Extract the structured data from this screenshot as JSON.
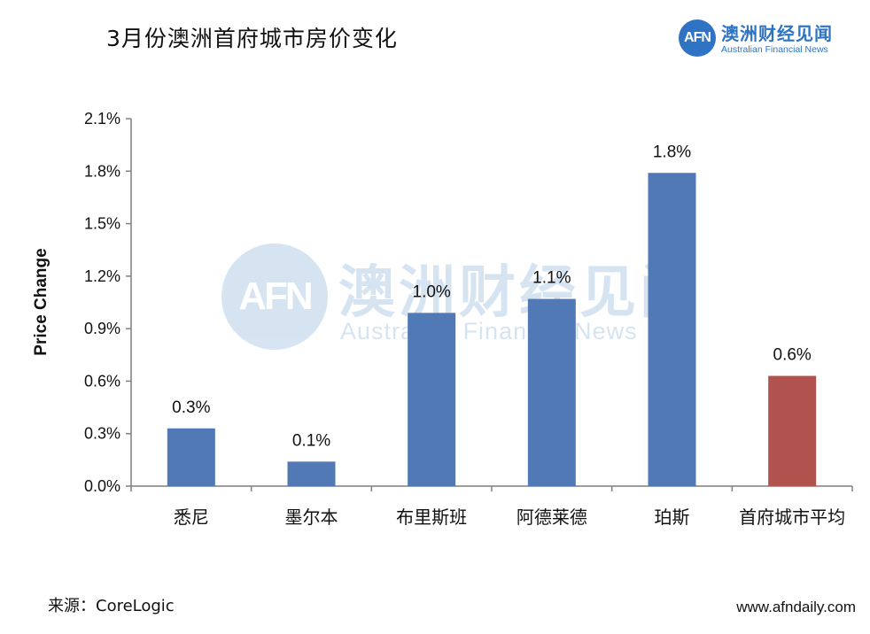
{
  "title": "3月份澳洲首府城市房价变化",
  "logo": {
    "mark": "AFN",
    "name_cn": "澳洲财经见闻",
    "name_en": "Australian Financial News"
  },
  "watermark": {
    "mark": "AFN",
    "name_cn": "澳洲财经见闻",
    "name_en": "Australian Financial News"
  },
  "source": "来源：CoreLogic",
  "website": "www.afndaily.com",
  "colors": {
    "bar_primary": "#5079b6",
    "bar_highlight": "#b0524d",
    "brand": "#2f74c4"
  },
  "chart_data": {
    "type": "bar",
    "title": "",
    "xlabel": "",
    "ylabel": "Price Change",
    "categories": [
      "悉尼",
      "墨尔本",
      "布里斯班",
      "阿德莱德",
      "珀斯",
      "首府城市平均"
    ],
    "values": [
      0.33,
      0.14,
      0.99,
      1.07,
      1.79,
      0.63
    ],
    "data_labels": [
      "0.3%",
      "0.1%",
      "1.0%",
      "1.1%",
      "1.8%",
      "0.6%"
    ],
    "highlight_index": 5,
    "yticks": [
      "0.0%",
      "0.3%",
      "0.6%",
      "0.9%",
      "1.2%",
      "1.5%",
      "1.8%",
      "2.1%"
    ],
    "ylim": [
      0,
      2.1
    ],
    "grid": false,
    "legend": "none"
  }
}
